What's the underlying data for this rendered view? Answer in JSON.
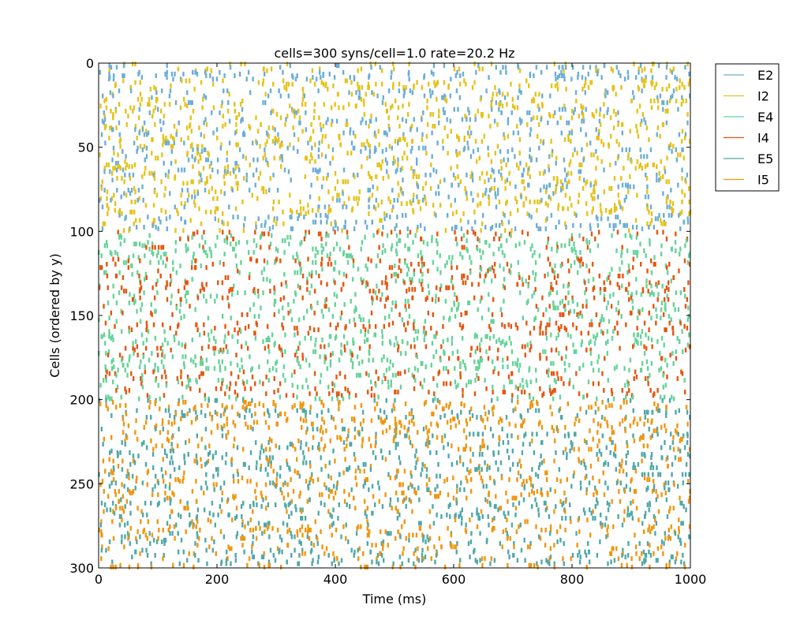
{
  "chart_data": {
    "type": "scatter",
    "title": "cells=300 syns/cell=1.0 rate=20.2 Hz",
    "xlabel": "Time (ms)",
    "ylabel": "Cells (ordered by y)",
    "xlim": [
      0,
      1000
    ],
    "ylim": [
      300,
      0
    ],
    "x_ticks": [
      "0",
      "200",
      "400",
      "600",
      "800",
      "1000"
    ],
    "y_ticks": [
      "0",
      "50",
      "100",
      "150",
      "200",
      "250",
      "300"
    ],
    "grid": false,
    "legend_placement": "outside-top-right",
    "mean_rate_hz": 20.2,
    "duration_ms": 1000,
    "series": [
      {
        "name": "E2",
        "color": "#6baed6",
        "cell_ranges": [
          [
            0,
            100
          ]
        ],
        "share": 0.5
      },
      {
        "name": "I2",
        "color": "#e6c21a",
        "cell_ranges": [
          [
            0,
            100
          ]
        ],
        "share": 0.5
      },
      {
        "name": "E4",
        "color": "#66d399",
        "cell_ranges": [
          [
            100,
            200
          ]
        ],
        "share": 0.6
      },
      {
        "name": "I4",
        "color": "#e6550d",
        "cell_ranges": [
          [
            100,
            200
          ]
        ],
        "share": 0.4
      },
      {
        "name": "E5",
        "color": "#4fa8a8",
        "cell_ranges": [
          [
            200,
            300
          ]
        ],
        "share": 0.5
      },
      {
        "name": "I5",
        "color": "#f0960f",
        "cell_ranges": [
          [
            200,
            300
          ]
        ],
        "share": 0.5
      }
    ]
  }
}
